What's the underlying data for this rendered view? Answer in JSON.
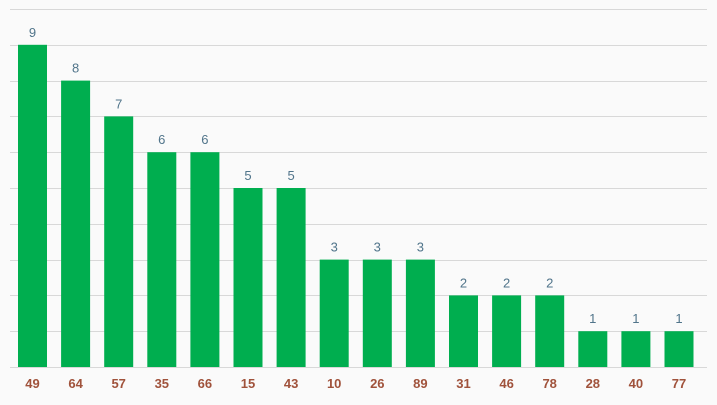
{
  "chart_data": {
    "type": "bar",
    "categories": [
      "49",
      "64",
      "57",
      "35",
      "66",
      "15",
      "43",
      "10",
      "26",
      "89",
      "31",
      "46",
      "78",
      "28",
      "40",
      "77"
    ],
    "values": [
      9,
      8,
      7,
      6,
      6,
      5,
      5,
      3,
      3,
      3,
      2,
      2,
      2,
      1,
      1,
      1
    ],
    "title": "",
    "xlabel": "",
    "ylabel": "",
    "ylim": [
      0,
      10
    ],
    "grid": true,
    "legend": "none",
    "data_labels": true,
    "colors": {
      "bar": "#00ae4f",
      "value_label": "#50748a",
      "tick_label": "#a0523b",
      "grid": "#d8d8d8",
      "background": "#fafafa"
    }
  }
}
